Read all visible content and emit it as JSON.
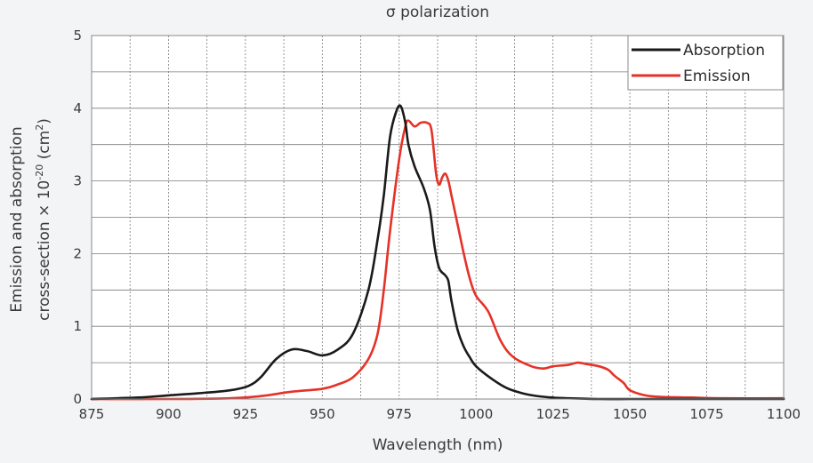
{
  "chart_data": {
    "type": "line",
    "title": "σ polarization",
    "xlabel": "Wavelength (nm)",
    "ylabel_line1": "Emission and absorption",
    "ylabel_line2_prefix": "cross-section × 10",
    "ylabel_exp": "-20",
    "ylabel_line2_mid": " (cm",
    "ylabel_sq": "2",
    "ylabel_line2_suffix": ")",
    "xlim": [
      875,
      1100
    ],
    "ylim": [
      0,
      5
    ],
    "xticks": [
      875,
      900,
      925,
      950,
      975,
      1000,
      1025,
      1050,
      1075,
      1100
    ],
    "yticks": [
      0,
      1,
      2,
      3,
      4,
      5
    ],
    "grid": true,
    "legend_position": "top-right",
    "series": [
      {
        "name": "Absorption",
        "color": "#1a1a1a",
        "x": [
          875,
          890,
          900,
          910,
          920,
          926,
          930,
          935,
          940,
          945,
          950,
          955,
          960,
          965,
          968,
          970,
          972,
          974,
          975.5,
          977,
          978,
          980,
          983,
          985,
          986.5,
          988,
          990,
          991,
          992,
          994,
          996,
          998,
          1000,
          1005,
          1010,
          1015,
          1020,
          1025,
          1030,
          1040,
          1050,
          1060,
          1075,
          1100
        ],
        "y": [
          0,
          0.02,
          0.05,
          0.08,
          0.12,
          0.18,
          0.3,
          0.55,
          0.68,
          0.66,
          0.6,
          0.68,
          0.9,
          1.5,
          2.2,
          2.8,
          3.6,
          3.95,
          4.03,
          3.8,
          3.5,
          3.2,
          2.9,
          2.6,
          2.1,
          1.8,
          1.7,
          1.62,
          1.35,
          0.95,
          0.72,
          0.57,
          0.45,
          0.28,
          0.15,
          0.08,
          0.04,
          0.02,
          0.01,
          0,
          0,
          0,
          0,
          0
        ]
      },
      {
        "name": "Emission",
        "color": "#e53228",
        "x": [
          875,
          900,
          920,
          930,
          940,
          950,
          955,
          960,
          965,
          968,
          970,
          972,
          975,
          977,
          978,
          980,
          982,
          984,
          985.5,
          987,
          988,
          989,
          990,
          991,
          992,
          994,
          996,
          998,
          1000,
          1004,
          1008,
          1012,
          1018,
          1022,
          1025,
          1030,
          1033,
          1036,
          1040,
          1043,
          1045,
          1048,
          1050,
          1055,
          1060,
          1070,
          1080,
          1100
        ],
        "y": [
          0,
          0,
          0.01,
          0.04,
          0.1,
          0.14,
          0.2,
          0.3,
          0.55,
          0.9,
          1.5,
          2.3,
          3.3,
          3.75,
          3.83,
          3.75,
          3.8,
          3.8,
          3.7,
          3.1,
          2.95,
          3.05,
          3.1,
          3.0,
          2.8,
          2.4,
          2.0,
          1.65,
          1.42,
          1.2,
          0.8,
          0.58,
          0.45,
          0.42,
          0.45,
          0.47,
          0.5,
          0.48,
          0.45,
          0.4,
          0.32,
          0.22,
          0.12,
          0.05,
          0.03,
          0.02,
          0.01,
          0.01
        ]
      }
    ]
  },
  "colors": {
    "background": "#f3f4f6",
    "plot_background": "#ffffff",
    "grid": "#7a7a7a"
  }
}
